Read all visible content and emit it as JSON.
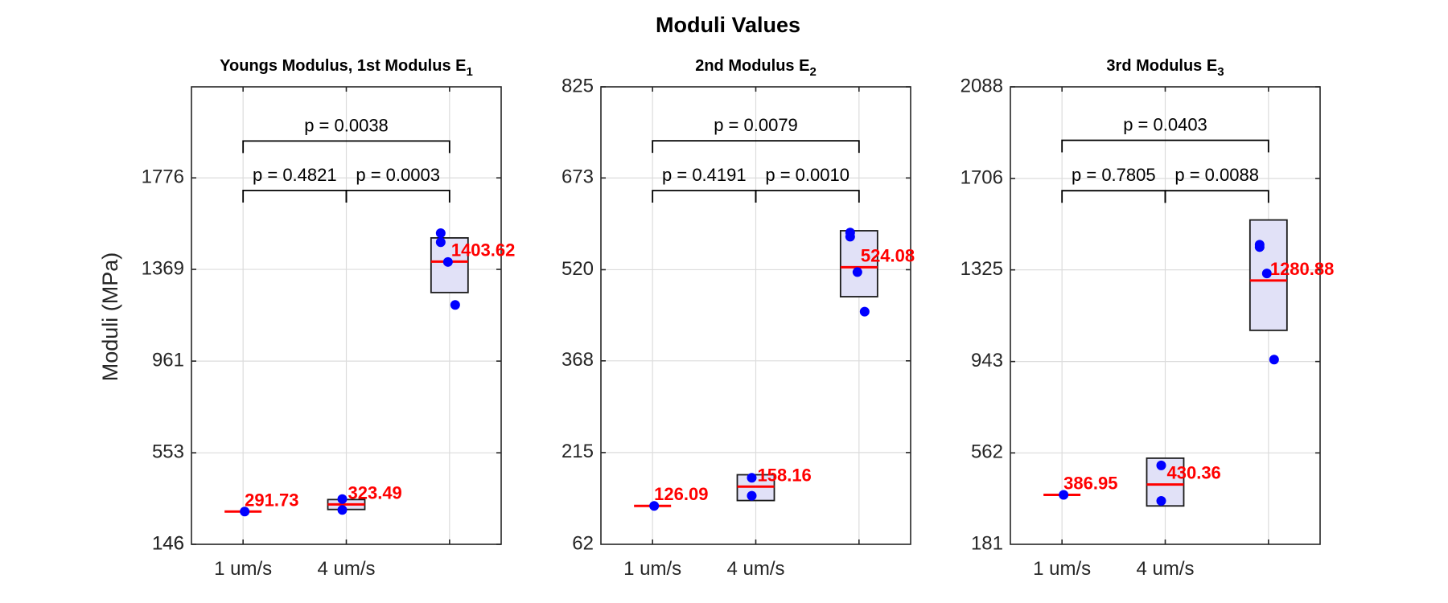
{
  "figure_title": "Moduli Values",
  "ylabel": "Moduli (MPa)",
  "chart_data": [
    {
      "type": "box",
      "title": "Youngs Modulus, 1st Modulus E",
      "title_subscript": "1",
      "xlim": [
        0.5,
        3.5
      ],
      "ylim": [
        146,
        2181
      ],
      "yticks": [
        146,
        553,
        961,
        1369,
        1776
      ],
      "xticks": [
        1,
        2,
        3
      ],
      "xticklabels": [
        "1 um/s",
        "4 um/s",
        ""
      ],
      "groups": [
        {
          "x": 1,
          "median": 291.73,
          "median_label": "291.73",
          "box": null,
          "points": [
            291.7
          ]
        },
        {
          "x": 2,
          "median": 323.49,
          "median_label": "323.49",
          "box": [
            301,
            345
          ],
          "points": [
            299,
            347
          ]
        },
        {
          "x": 3,
          "median": 1403.62,
          "median_label": "1403.62",
          "box": [
            1266,
            1509
          ],
          "points": [
            1211,
            1402,
            1490,
            1530
          ]
        }
      ],
      "comparisons": [
        {
          "from": 1,
          "to": 2,
          "y": 1720,
          "label": "p = 0.4821"
        },
        {
          "from": 2,
          "to": 3,
          "y": 1720,
          "label": "p = 0.0003"
        },
        {
          "from": 1,
          "to": 3,
          "y": 1940,
          "label": "p = 0.0038"
        }
      ]
    },
    {
      "type": "box",
      "title": "2nd Modulus E",
      "title_subscript": "2",
      "xlim": [
        0.5,
        3.5
      ],
      "ylim": [
        62,
        825
      ],
      "yticks": [
        215,
        368,
        520,
        673,
        825
      ],
      "xticks": [
        1,
        2,
        3
      ],
      "xticklabels": [
        "1 um/s",
        "4 um/s",
        ""
      ],
      "groups": [
        {
          "x": 1,
          "median": 126.09,
          "median_label": "126.09",
          "box": null,
          "points": [
            126
          ]
        },
        {
          "x": 2,
          "median": 158.16,
          "median_label": "158.16",
          "box": [
            135,
            178
          ],
          "points": [
            143,
            173
          ]
        },
        {
          "x": 3,
          "median": 524.08,
          "median_label": "524.08",
          "box": [
            475,
            585
          ],
          "points": [
            450,
            516,
            575,
            582
          ]
        }
      ],
      "comparisons": [
        {
          "from": 1,
          "to": 2,
          "y": 652,
          "label": "p = 0.4191"
        },
        {
          "from": 2,
          "to": 3,
          "y": 652,
          "label": "p = 0.0010"
        },
        {
          "from": 1,
          "to": 3,
          "y": 735,
          "label": "p = 0.0079"
        }
      ]
    },
    {
      "type": "box",
      "title": "3rd Modulus E",
      "title_subscript": "3",
      "xlim": [
        0.5,
        3.5
      ],
      "ylim": [
        181,
        2088
      ],
      "yticks": [
        562,
        943,
        1325,
        1706,
        2088
      ],
      "xticks": [
        1,
        2,
        3
      ],
      "xticklabels": [
        "1 um/s",
        "4 um/s",
        ""
      ],
      "groups": [
        {
          "x": 1,
          "median": 386.95,
          "median_label": "386.95",
          "box": null,
          "points": [
            387
          ]
        },
        {
          "x": 2,
          "median": 430.36,
          "median_label": "430.36",
          "box": [
            341,
            540
          ],
          "points": [
            362,
            510
          ]
        },
        {
          "x": 3,
          "median": 1280.88,
          "median_label": "1280.88",
          "box": [
            1073,
            1533
          ],
          "points": [
            951,
            1310,
            1420,
            1430
          ]
        }
      ],
      "comparisons": [
        {
          "from": 1,
          "to": 2,
          "y": 1655,
          "label": "p = 0.7805"
        },
        {
          "from": 2,
          "to": 3,
          "y": 1655,
          "label": "p = 0.0088"
        },
        {
          "from": 1,
          "to": 3,
          "y": 1865,
          "label": "p = 0.0403"
        }
      ]
    }
  ]
}
